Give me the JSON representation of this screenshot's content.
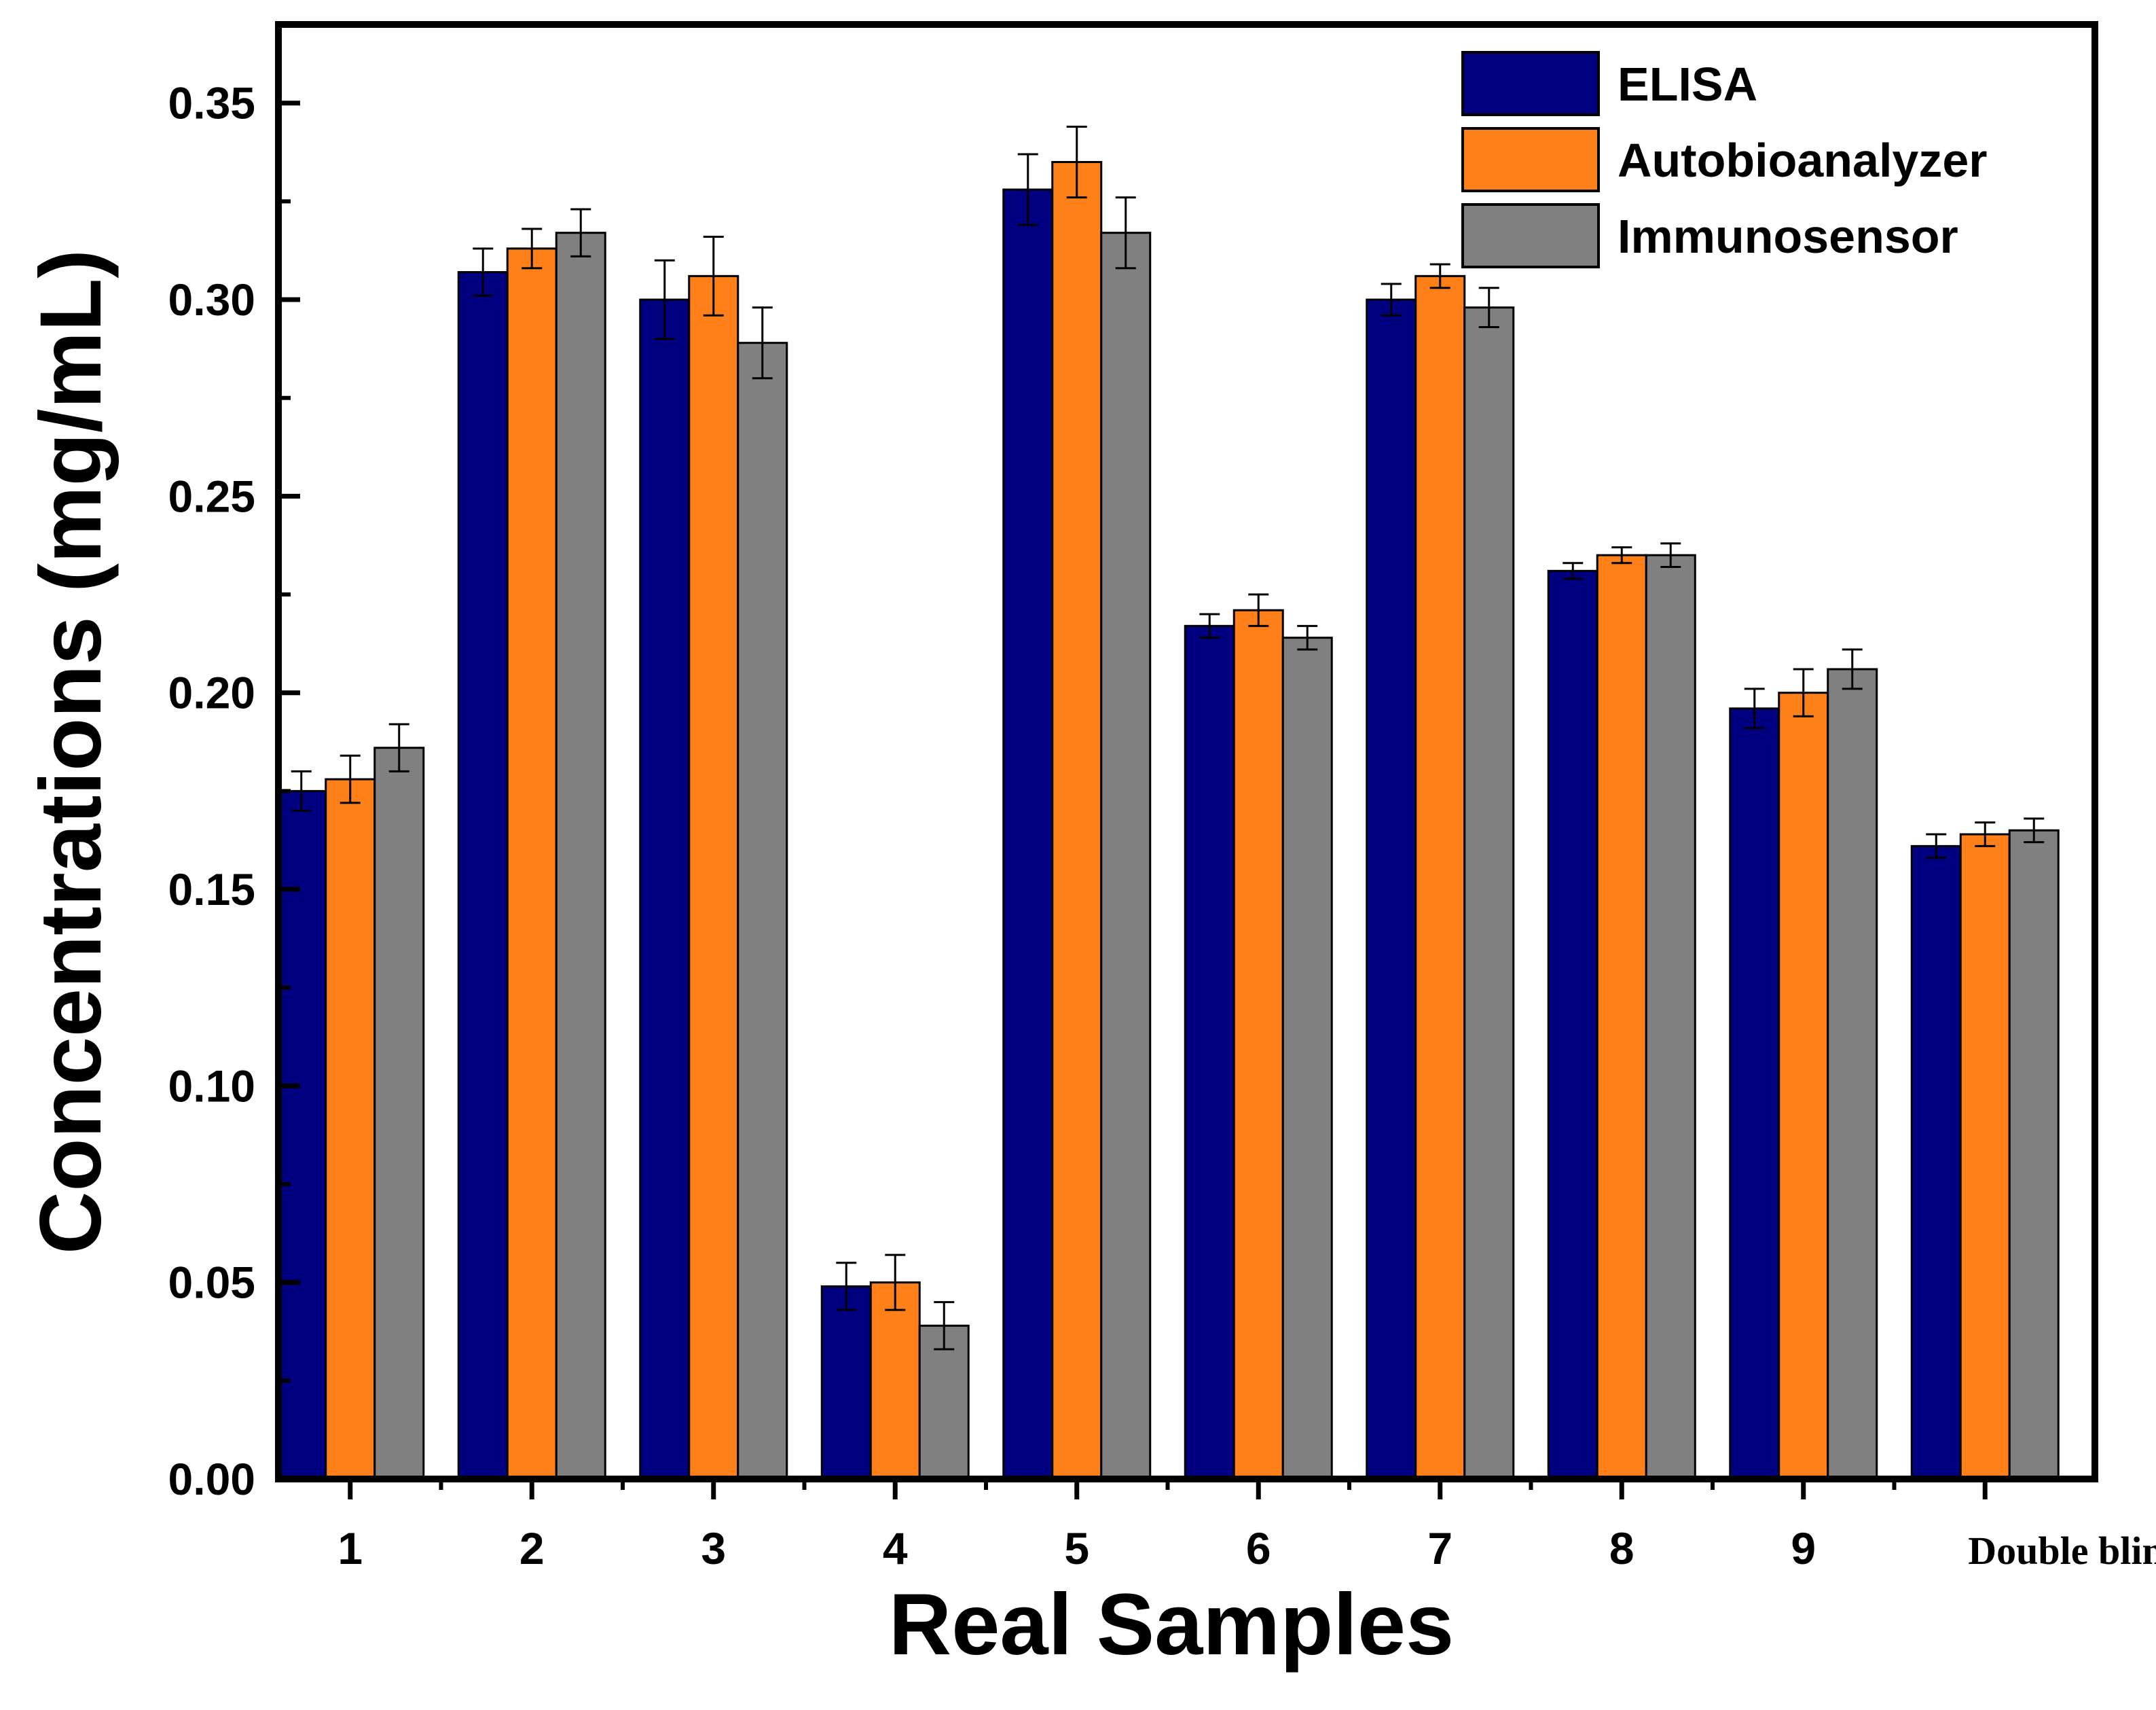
{
  "chart_data": {
    "type": "bar",
    "title": "",
    "xlabel": "Real Samples",
    "ylabel": "Concentrations (mg/mL)",
    "ylim": [
      0,
      0.37
    ],
    "yticks": [
      "0.00",
      "0.05",
      "0.10",
      "0.15",
      "0.20",
      "0.25",
      "0.30",
      "0.35"
    ],
    "ytick_values": [
      0,
      0.05,
      0.1,
      0.15,
      0.2,
      0.25,
      0.3,
      0.35
    ],
    "categories": [
      "1",
      "2",
      "3",
      "4",
      "5",
      "6",
      "7",
      "8",
      "9",
      "Double blind"
    ],
    "legend_position": "top-right",
    "series": [
      {
        "name": "ELISA",
        "color": "#000080",
        "values": [
          0.175,
          0.307,
          0.3,
          0.049,
          0.328,
          0.217,
          0.3,
          0.231,
          0.196,
          0.161
        ],
        "errors": [
          0.005,
          0.006,
          0.01,
          0.006,
          0.009,
          0.003,
          0.004,
          0.002,
          0.005,
          0.003
        ]
      },
      {
        "name": "Autobioanalyzer",
        "color": "#FF8019",
        "values": [
          0.178,
          0.313,
          0.306,
          0.05,
          0.335,
          0.221,
          0.306,
          0.235,
          0.2,
          0.164
        ],
        "errors": [
          0.006,
          0.005,
          0.01,
          0.007,
          0.009,
          0.004,
          0.003,
          0.002,
          0.006,
          0.003
        ]
      },
      {
        "name": "Immunosensor",
        "color": "#808080",
        "values": [
          0.186,
          0.317,
          0.289,
          0.039,
          0.317,
          0.214,
          0.298,
          0.235,
          0.206,
          0.165
        ],
        "errors": [
          0.006,
          0.006,
          0.009,
          0.006,
          0.009,
          0.003,
          0.005,
          0.003,
          0.005,
          0.003
        ]
      }
    ]
  }
}
